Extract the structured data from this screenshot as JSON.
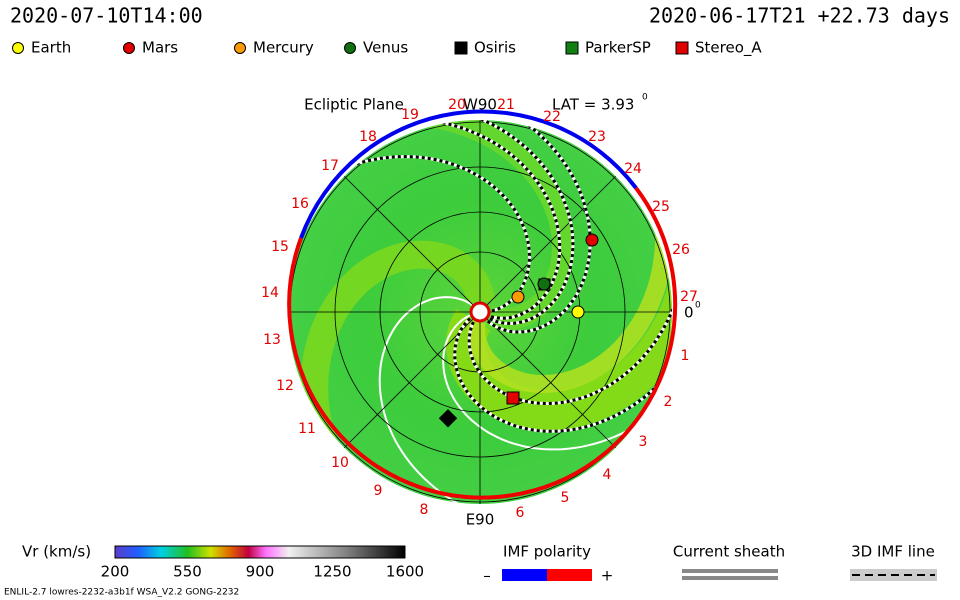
{
  "header": {
    "left": "2020-07-10T14:00",
    "right": "2020-06-17T21 +22.73 days"
  },
  "legend": [
    {
      "label": "Earth",
      "color": "#ffff00",
      "shape": "circle"
    },
    {
      "label": "Mars",
      "color": "#e00000",
      "shape": "circle"
    },
    {
      "label": "Mercury",
      "color": "#ff9900",
      "shape": "circle"
    },
    {
      "label": "Venus",
      "color": "#107010",
      "shape": "circle"
    },
    {
      "label": "Osiris",
      "color": "#000000",
      "shape": "square"
    },
    {
      "label": "ParkerSP",
      "color": "#108010",
      "shape": "square"
    },
    {
      "label": "Stereo_A",
      "color": "#e00000",
      "shape": "square"
    }
  ],
  "plot": {
    "title": "Ecliptic Plane",
    "top_label": "W90",
    "bottom_label": "E90",
    "lat_label": "LAT = 3.93",
    "lat_sup": "0",
    "right_label": "0",
    "right_sup": "0",
    "carrington_labels": [
      "19",
      "20",
      "21",
      "22",
      "23",
      "24",
      "25",
      "26",
      "27",
      "1",
      "2",
      "3",
      "4",
      "5",
      "6",
      "8",
      "9",
      "10",
      "11",
      "12",
      "13",
      "14",
      "15",
      "16",
      "17",
      "18"
    ]
  },
  "colorbar": {
    "label": "Vr (km/s)",
    "ticks": [
      "200",
      "550",
      "900",
      "1250",
      "1600"
    ]
  },
  "imf": {
    "title": "IMF polarity",
    "minus": "–",
    "plus": "+"
  },
  "sheath": {
    "title": "Current sheath"
  },
  "imf3d": {
    "title": "3D IMF line"
  },
  "footer": "ENLIL-2.7 lowres-2232-a3b1f WSA_V2.2 GONG-2232"
}
